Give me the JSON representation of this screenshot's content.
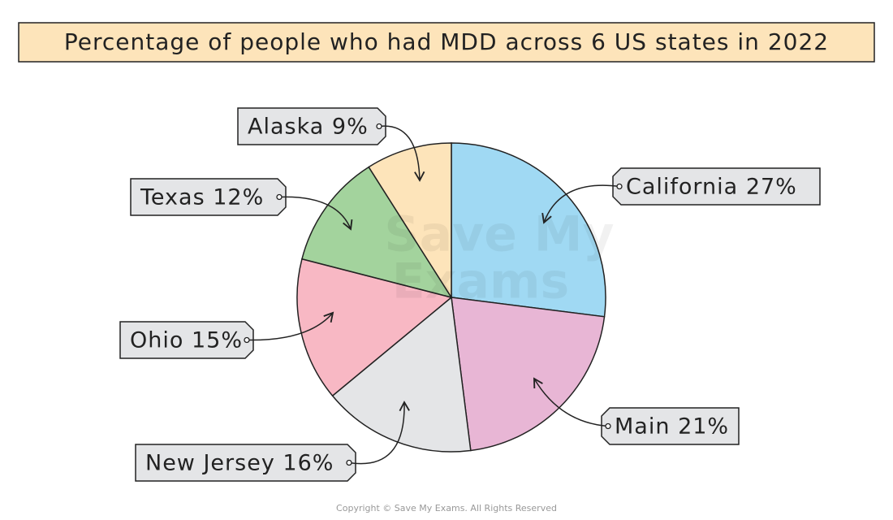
{
  "chart_data": {
    "type": "pie",
    "title": "Percentage of people who had MDD across 6 US states in 2022",
    "categories": [
      "California",
      "Main",
      "New Jersey",
      "Ohio",
      "Texas",
      "Alaska"
    ],
    "values": [
      27,
      21,
      16,
      15,
      12,
      9
    ],
    "value_labels": [
      "27%",
      "21%",
      "16%",
      "15%",
      "12%",
      "9%"
    ],
    "colors": [
      "#a0d9f3",
      "#e8b6d5",
      "#e4e5e7",
      "#f8b8c4",
      "#a3d39d",
      "#fde4ba"
    ],
    "watermark": [
      "Save My",
      "Exams"
    ],
    "copyright": "Copyright © Save My Exams. All Rights Reserved"
  }
}
